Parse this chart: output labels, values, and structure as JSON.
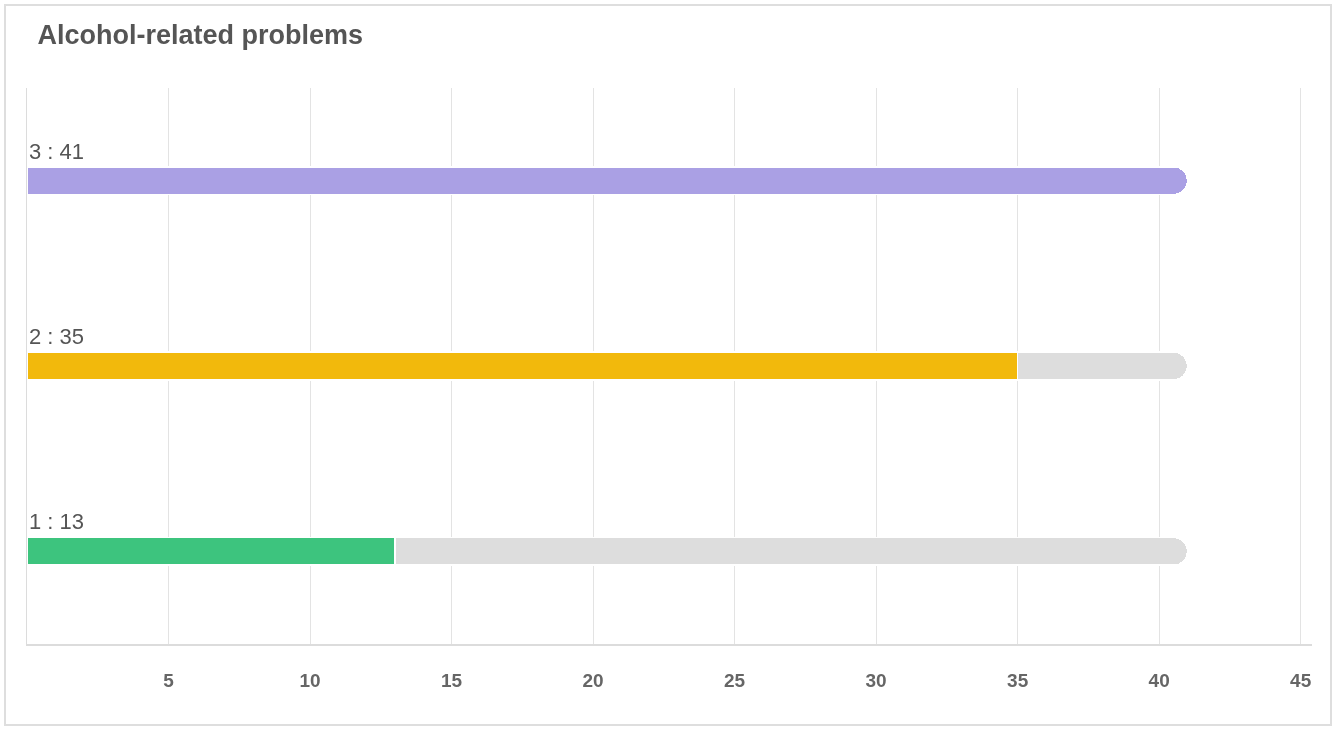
{
  "chart_data": {
    "type": "bar",
    "title": "Alcohol-related problems",
    "orientation": "horizontal",
    "stacked": true,
    "categories": [
      null,
      null,
      null
    ],
    "series": [
      {
        "colors": [
          "#aaa0e4",
          "#f2b90c",
          "#3dc47e"
        ],
        "values": [
          41,
          35,
          13
        ],
        "value_labels": [
          "3 : 41",
          "2 : 35",
          "1 : 13"
        ]
      },
      {
        "color": "#dddddd",
        "values": [
          0,
          6,
          28
        ]
      }
    ],
    "xlim": [
      0,
      45.4
    ],
    "xticks": [
      5,
      10,
      15,
      20,
      25,
      30,
      35,
      40,
      45
    ],
    "grid": "x",
    "tick_labels": "x"
  }
}
